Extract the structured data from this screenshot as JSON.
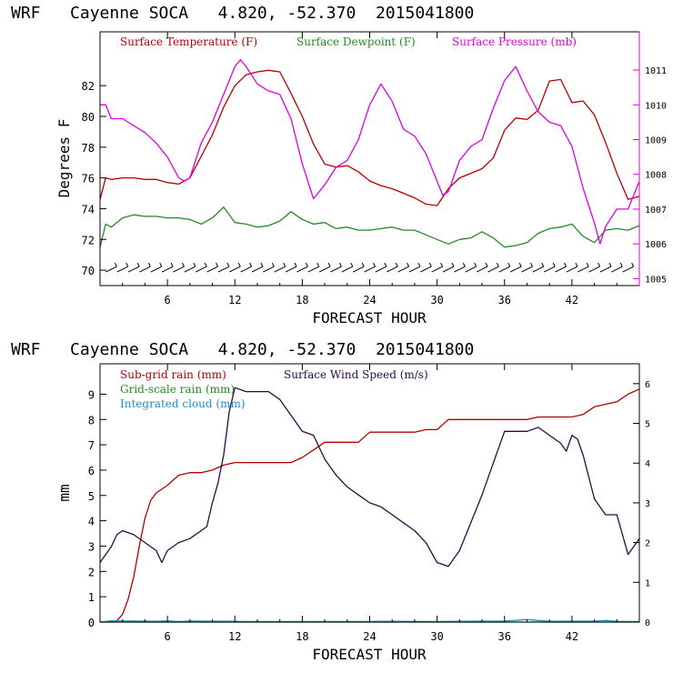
{
  "colors": {
    "temperature": "#b30000",
    "dewpoint": "#228b22",
    "pressure": "#dd00dd",
    "rain_subgrid": "#b30000",
    "rain_grid": "#228b22",
    "cloud": "#1e90c8",
    "wind": "#2a0a4a",
    "wind_barb": "#000000"
  },
  "chart_data": [
    {
      "type": "line",
      "title": "WRF   Cayenne SOCA   4.820, -52.370  2015041800",
      "xlabel": "FORECAST HOUR",
      "ylabel": "Degrees F",
      "xlim": [
        0,
        48
      ],
      "ylim": [
        69,
        85.5
      ],
      "y2lim": [
        1004.8,
        1012.1
      ],
      "xticks": [
        6,
        12,
        18,
        24,
        30,
        36,
        42
      ],
      "yticks": [
        70,
        72,
        74,
        76,
        78,
        80,
        82
      ],
      "y2ticks": [
        1005,
        1006,
        1007,
        1008,
        1009,
        1010,
        1011
      ],
      "grid": false,
      "legend_position": "top",
      "series": [
        {
          "name": "Surface Temperature (F)",
          "axis": "left",
          "x": [
            0,
            0.5,
            1,
            2,
            3,
            4,
            5,
            6,
            7,
            8,
            9,
            10,
            11,
            12,
            13,
            14,
            15,
            16,
            17,
            18,
            19,
            20,
            21,
            22,
            23,
            24,
            25,
            26,
            27,
            28,
            29,
            30,
            31,
            32,
            33,
            34,
            35,
            36,
            37,
            38,
            39,
            40,
            41,
            42,
            43,
            44,
            45,
            46,
            47,
            48
          ],
          "y": [
            74.6,
            76.0,
            75.9,
            76.0,
            76.0,
            75.9,
            75.9,
            75.7,
            75.6,
            76.0,
            77.4,
            78.8,
            80.6,
            82.0,
            82.7,
            82.9,
            83.0,
            82.9,
            81.5,
            80.0,
            78.2,
            76.9,
            76.7,
            76.8,
            76.4,
            75.8,
            75.5,
            75.3,
            75.0,
            74.7,
            74.3,
            74.2,
            75.3,
            76.0,
            76.3,
            76.6,
            77.3,
            79.1,
            79.9,
            79.8,
            80.4,
            82.3,
            82.4,
            80.9,
            81.0,
            80.1,
            78.3,
            76.3,
            74.6,
            74.8
          ]
        },
        {
          "name": "Surface Dewpoint (F)",
          "axis": "left",
          "x": [
            0,
            0.5,
            1,
            2,
            3,
            4,
            5,
            6,
            7,
            8,
            9,
            10,
            11,
            12,
            13,
            14,
            15,
            16,
            17,
            18,
            19,
            20,
            21,
            22,
            23,
            24,
            25,
            26,
            27,
            28,
            29,
            30,
            31,
            32,
            33,
            34,
            35,
            36,
            37,
            38,
            39,
            40,
            41,
            42,
            43,
            44,
            45,
            46,
            47,
            48
          ],
          "y": [
            71.5,
            73.0,
            72.8,
            73.4,
            73.6,
            73.5,
            73.5,
            73.4,
            73.4,
            73.3,
            73.0,
            73.4,
            74.1,
            73.1,
            73.0,
            72.8,
            72.9,
            73.2,
            73.8,
            73.3,
            73.0,
            73.1,
            72.7,
            72.8,
            72.6,
            72.6,
            72.7,
            72.8,
            72.6,
            72.6,
            72.3,
            72.0,
            71.7,
            72.0,
            72.1,
            72.5,
            72.1,
            71.5,
            71.6,
            71.8,
            72.4,
            72.7,
            72.8,
            73.0,
            72.2,
            71.8,
            72.6,
            72.7,
            72.6,
            72.9
          ]
        },
        {
          "name": "Surface Pressure (mb)",
          "axis": "right",
          "x": [
            0,
            0.5,
            1,
            2,
            3,
            4,
            5,
            6,
            7,
            7.5,
            8,
            9,
            10,
            11,
            12,
            12.5,
            13,
            14,
            15,
            16,
            17,
            18,
            19,
            20,
            21,
            22,
            23,
            24,
            25,
            26,
            27,
            28,
            29,
            30,
            30.5,
            31,
            32,
            33,
            34,
            35,
            36,
            37,
            38,
            39,
            40,
            41,
            42,
            43,
            44,
            44.5,
            45,
            46,
            47,
            48
          ],
          "y": [
            1010.0,
            1010.0,
            1009.6,
            1009.6,
            1009.4,
            1009.2,
            1008.9,
            1008.5,
            1007.9,
            1007.8,
            1007.9,
            1008.9,
            1009.5,
            1010.3,
            1011.1,
            1011.3,
            1011.1,
            1010.6,
            1010.4,
            1010.3,
            1009.6,
            1008.3,
            1007.3,
            1007.7,
            1008.2,
            1008.4,
            1009.0,
            1010.0,
            1010.6,
            1010.1,
            1009.3,
            1009.1,
            1008.6,
            1007.8,
            1007.4,
            1007.5,
            1008.4,
            1008.8,
            1009.0,
            1009.9,
            1010.7,
            1011.1,
            1010.4,
            1009.8,
            1009.5,
            1009.4,
            1008.8,
            1007.6,
            1006.6,
            1006.0,
            1006.5,
            1007.0,
            1007.0,
            1007.8
          ]
        }
      ]
    },
    {
      "type": "line",
      "title": "WRF   Cayenne SOCA   4.820, -52.370  2015041800",
      "xlabel": "FORECAST HOUR",
      "ylabel": "mm",
      "xlim": [
        0,
        48
      ],
      "ylim": [
        0,
        10.2
      ],
      "y2lim": [
        0,
        6.5
      ],
      "xticks": [
        6,
        12,
        18,
        24,
        30,
        36,
        42
      ],
      "yticks": [
        0,
        1,
        2,
        3,
        4,
        5,
        6,
        7,
        8,
        9
      ],
      "y2ticks": [
        0,
        1,
        2,
        3,
        4,
        5,
        6
      ],
      "grid": false,
      "legend_position": "top-left",
      "series": [
        {
          "name": "Sub-grid rain (mm)",
          "axis": "left",
          "x": [
            0,
            1.5,
            2,
            2.5,
            3,
            3.5,
            4,
            4.5,
            5,
            6,
            7,
            8,
            9,
            10,
            11,
            12,
            13,
            14,
            15,
            16,
            17,
            18,
            19,
            20,
            21,
            22,
            23,
            24,
            25,
            26,
            27,
            28,
            29,
            30,
            31,
            32,
            33,
            34,
            35,
            36,
            37,
            38,
            39,
            40,
            41,
            42,
            43,
            44,
            45,
            46,
            47,
            48
          ],
          "y": [
            0,
            0.05,
            0.3,
            0.9,
            1.8,
            3.0,
            4.1,
            4.8,
            5.1,
            5.4,
            5.8,
            5.9,
            5.9,
            6.0,
            6.2,
            6.3,
            6.3,
            6.3,
            6.3,
            6.3,
            6.3,
            6.5,
            6.8,
            7.1,
            7.1,
            7.1,
            7.1,
            7.5,
            7.5,
            7.5,
            7.5,
            7.5,
            7.6,
            7.6,
            8.0,
            8.0,
            8.0,
            8.0,
            8.0,
            8.0,
            8.0,
            8.0,
            8.1,
            8.1,
            8.1,
            8.1,
            8.2,
            8.5,
            8.6,
            8.7,
            9.0,
            9.2
          ]
        },
        {
          "name": "Grid-scale rain (mm)",
          "axis": "left",
          "x": [
            0,
            48
          ],
          "y": [
            0,
            0
          ]
        },
        {
          "name": "Integrated cloud (mm)",
          "axis": "left",
          "x": [
            0,
            1,
            5,
            6,
            7,
            8,
            12,
            13,
            24,
            25,
            30,
            32,
            36,
            37,
            38,
            39,
            40,
            44,
            45,
            46,
            47,
            48
          ],
          "y": [
            0,
            0.05,
            0.03,
            0.05,
            0.02,
            0.04,
            0.03,
            0.02,
            0.02,
            0.03,
            0.02,
            0.03,
            0.04,
            0.07,
            0.1,
            0.06,
            0.03,
            0.04,
            0.06,
            0.03,
            0.02,
            0.02
          ]
        },
        {
          "name": "Surface Wind Speed (m/s)",
          "axis": "right",
          "x": [
            0,
            0.5,
            1,
            1.5,
            2,
            3,
            4,
            5,
            5.5,
            6,
            7,
            8,
            9,
            9.5,
            10,
            10.5,
            11,
            11.5,
            12,
            13,
            14,
            15,
            16,
            17,
            18,
            19,
            20,
            21,
            22,
            23,
            24,
            25,
            26,
            27,
            28,
            29,
            30,
            31,
            32,
            33,
            34,
            35,
            36,
            37,
            38,
            39,
            40,
            41,
            41.5,
            42,
            42.5,
            43,
            44,
            45,
            46,
            47,
            48
          ],
          "y": [
            1.5,
            1.7,
            1.9,
            2.2,
            2.3,
            2.2,
            2.0,
            1.8,
            1.5,
            1.8,
            2.0,
            2.1,
            2.3,
            2.4,
            3.0,
            3.5,
            4.2,
            5.3,
            5.9,
            5.8,
            5.8,
            5.8,
            5.6,
            5.2,
            4.8,
            4.7,
            4.1,
            3.7,
            3.4,
            3.2,
            3.0,
            2.9,
            2.7,
            2.5,
            2.3,
            2.0,
            1.5,
            1.4,
            1.8,
            2.5,
            3.2,
            4.0,
            4.8,
            4.8,
            4.8,
            4.9,
            4.7,
            4.5,
            4.3,
            4.7,
            4.6,
            4.2,
            3.1,
            2.7,
            2.7,
            1.7,
            2.1
          ]
        }
      ]
    }
  ]
}
